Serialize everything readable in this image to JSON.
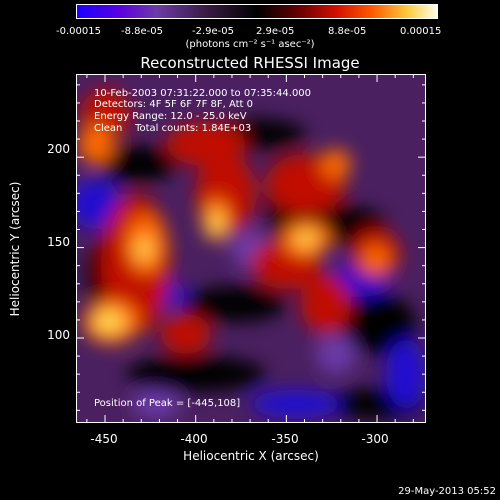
{
  "colorbar": {
    "ticks": [
      "-0.00015",
      "-8.8e-05",
      "-2.9e-05",
      "2.9e-05",
      "8.8e-05",
      "0.00015"
    ],
    "unit": "(photons cm⁻² s⁻¹ asec⁻²)"
  },
  "chart_data": {
    "type": "heatmap",
    "title": "Reconstructed RHESSI Image",
    "xlabel": "Heliocentric X (arcsec)",
    "ylabel": "Heliocentric Y (arcsec)",
    "xlim": [
      -466,
      -273
    ],
    "ylim": [
      53,
      246
    ],
    "x_ticks": [
      "-450",
      "-400",
      "-350",
      "-300"
    ],
    "x_tick_values": [
      -450,
      -400,
      -350,
      -300
    ],
    "y_ticks": [
      "100",
      "150",
      "200"
    ],
    "y_tick_values": [
      100,
      150,
      200
    ],
    "clim": [
      -0.00015,
      0.00015
    ],
    "peak": [
      -445,
      108
    ],
    "annotations": {
      "time": "10-Feb-2003 07:31:22.000 to 07:35:44.000",
      "detectors": "Detectors: 4F 5F 6F 7F 8F, Att 0",
      "energy": "Energy Range: 12.0 - 25.0 keV",
      "clean": "Clean    Total counts: 1.84E+03",
      "peak_label": "Position of Peak = [-445,108]"
    }
  },
  "footer": {
    "date": "29-May-2013 05:52"
  }
}
